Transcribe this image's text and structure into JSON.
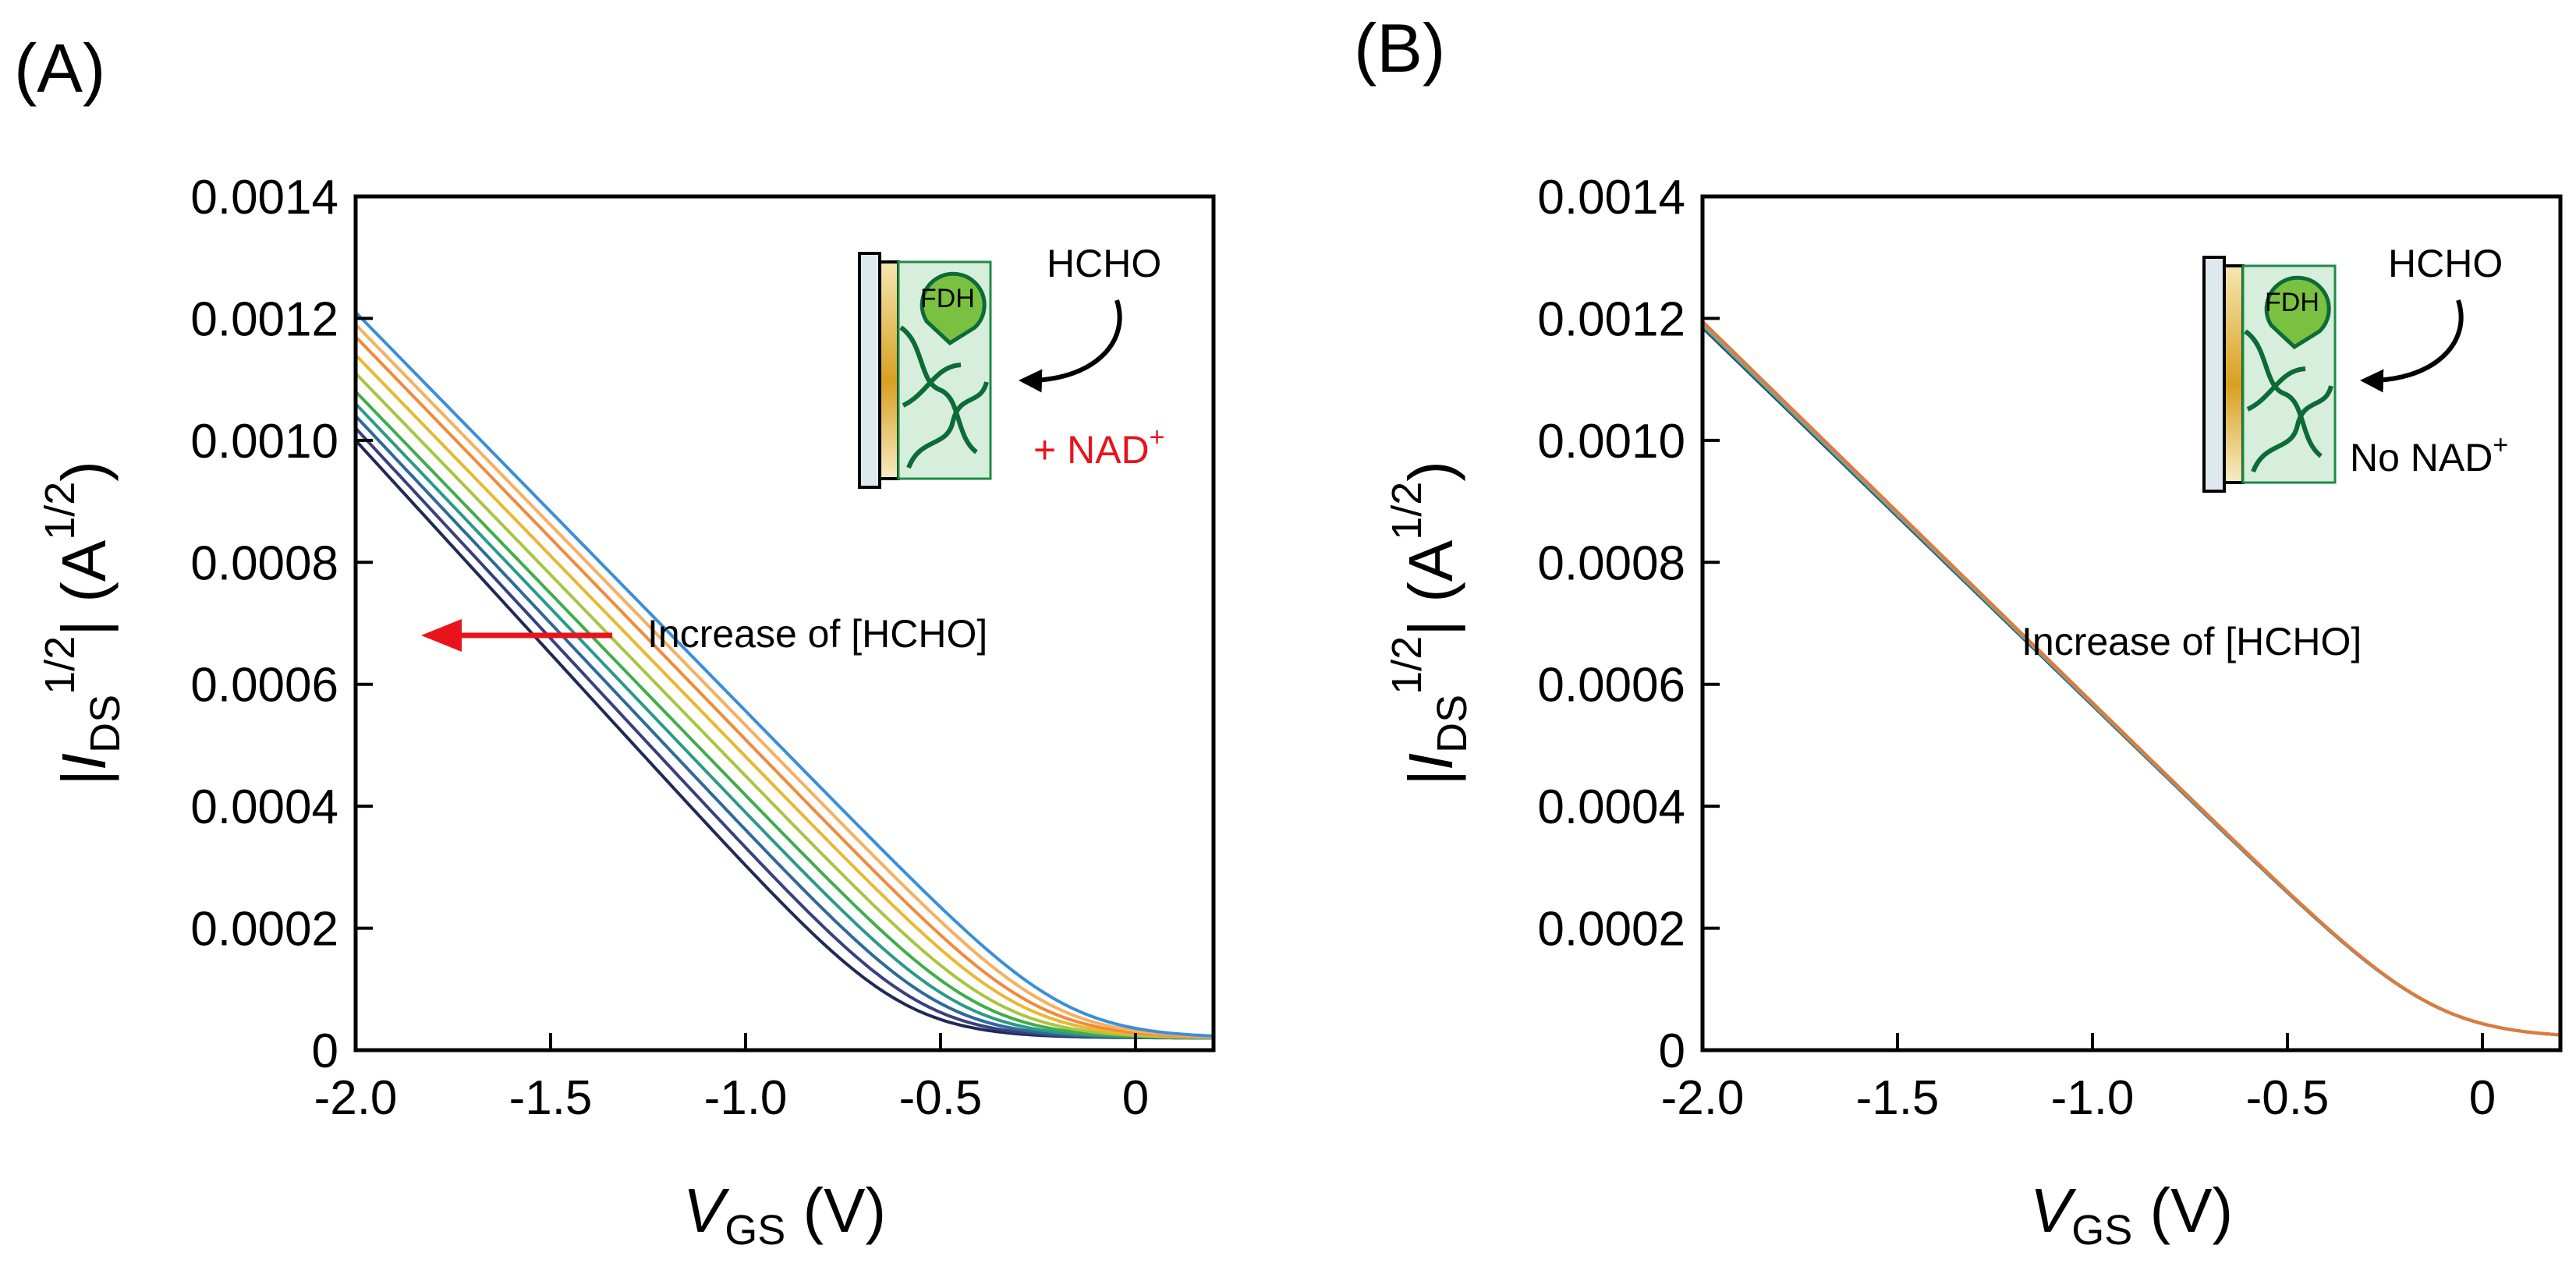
{
  "chart_data": [
    {
      "type": "line",
      "panel_label": "(A)",
      "xlabel": {
        "main": "V",
        "sub": "GS",
        "unit": " (V)"
      },
      "ylabel": {
        "pre": "|I",
        "sub": "DS",
        "sup": "1/2",
        "mid": "| (A",
        "sup2": "1/2",
        "post": ")"
      },
      "xlim": [
        -2.0,
        0.2
      ],
      "ylim": [
        0,
        0.0014
      ],
      "x_ticks": [
        {
          "v": -2.0,
          "label": "-2.0"
        },
        {
          "v": -1.5,
          "label": "-1.5"
        },
        {
          "v": -1.0,
          "label": "-1.0"
        },
        {
          "v": -0.5,
          "label": "-0.5"
        },
        {
          "v": 0,
          "label": "0"
        }
      ],
      "y_ticks": [
        {
          "v": 0,
          "label": "0"
        },
        {
          "v": 0.0002,
          "label": "0.0002"
        },
        {
          "v": 0.0004,
          "label": "0.0004"
        },
        {
          "v": 0.0006,
          "label": "0.0006"
        },
        {
          "v": 0.0008,
          "label": "0.0008"
        },
        {
          "v": 0.001,
          "label": "0.0010"
        },
        {
          "v": 0.0012,
          "label": "0.0012"
        },
        {
          "v": 0.0014,
          "label": "0.0014"
        }
      ],
      "series": [
        {
          "name": "c0",
          "color": "#1f2a55",
          "vth": -0.6,
          "y_at_minus2": 0.001,
          "floor": 2e-05
        },
        {
          "name": "c1",
          "color": "#3a3f80",
          "vth": -0.55,
          "y_at_minus2": 0.00102,
          "floor": 2e-05
        },
        {
          "name": "c2",
          "color": "#2d6a9a",
          "vth": -0.5,
          "y_at_minus2": 0.00104,
          "floor": 2e-05
        },
        {
          "name": "c3",
          "color": "#2a9a8a",
          "vth": -0.45,
          "y_at_minus2": 0.00106,
          "floor": 2e-05
        },
        {
          "name": "c4",
          "color": "#3fae49",
          "vth": -0.4,
          "y_at_minus2": 0.00108,
          "floor": 2e-05
        },
        {
          "name": "c5",
          "color": "#a9c540",
          "vth": -0.35,
          "y_at_minus2": 0.00111,
          "floor": 2e-05
        },
        {
          "name": "c6",
          "color": "#e8b830",
          "vth": -0.3,
          "y_at_minus2": 0.00114,
          "floor": 2e-05
        },
        {
          "name": "c7",
          "color": "#f08a3c",
          "vth": -0.26,
          "y_at_minus2": 0.00117,
          "floor": 2e-05
        },
        {
          "name": "c8",
          "color": "#f5b060",
          "vth": -0.22,
          "y_at_minus2": 0.00119,
          "floor": 2e-05
        },
        {
          "name": "c9",
          "color": "#3a8fd8",
          "vth": -0.18,
          "y_at_minus2": 0.00121,
          "floor": 2e-05
        }
      ],
      "annotations": {
        "trend": "Increase of [HCHO]",
        "analyte": "HCHO",
        "cofactor": {
          "prefix": "+ NAD",
          "sup": "+",
          "color": "#e8131b"
        },
        "enzyme": "FDH",
        "arrow_color": "#e8131b"
      }
    },
    {
      "type": "line",
      "panel_label": "(B)",
      "xlabel": {
        "main": "V",
        "sub": "GS",
        "unit": " (V)"
      },
      "ylabel": {
        "pre": "|I",
        "sub": "DS",
        "sup": "1/2",
        "mid": "| (A",
        "sup2": "1/2",
        "post": ")"
      },
      "xlim": [
        -2.0,
        0.2
      ],
      "ylim": [
        0,
        0.0014
      ],
      "x_ticks": [
        {
          "v": -2.0,
          "label": "-2.0"
        },
        {
          "v": -1.5,
          "label": "-1.5"
        },
        {
          "v": -1.0,
          "label": "-1.0"
        },
        {
          "v": -0.5,
          "label": "-0.5"
        },
        {
          "v": 0,
          "label": "0"
        }
      ],
      "y_ticks": [
        {
          "v": 0,
          "label": "0"
        },
        {
          "v": 0.0002,
          "label": "0.0002"
        },
        {
          "v": 0.0004,
          "label": "0.0004"
        },
        {
          "v": 0.0006,
          "label": "0.0006"
        },
        {
          "v": 0.0008,
          "label": "0.0008"
        },
        {
          "v": 0.001,
          "label": "0.0010"
        },
        {
          "v": 0.0012,
          "label": "0.0012"
        },
        {
          "v": 0.0014,
          "label": "0.0014"
        }
      ],
      "series": [
        {
          "name": "c0",
          "color": "#2a3f6a",
          "vth": -0.12,
          "y_at_minus2": 0.001185,
          "floor": 2e-05
        },
        {
          "name": "c1",
          "color": "#3a8f8a",
          "vth": -0.12,
          "y_at_minus2": 0.001188,
          "floor": 2e-05
        },
        {
          "name": "c2",
          "color": "#5aa85a",
          "vth": -0.12,
          "y_at_minus2": 0.00119,
          "floor": 2e-05
        },
        {
          "name": "c3",
          "color": "#8aa0b8",
          "vth": -0.12,
          "y_at_minus2": 0.001192,
          "floor": 2e-05
        },
        {
          "name": "c4",
          "color": "#e07a3a",
          "vth": -0.12,
          "y_at_minus2": 0.001195,
          "floor": 2e-05
        }
      ],
      "annotations": {
        "trend": "Increase of [HCHO]",
        "analyte": "HCHO",
        "cofactor": {
          "prefix": "No NAD",
          "sup": "+",
          "color": "#000000"
        },
        "enzyme": "FDH"
      }
    }
  ]
}
